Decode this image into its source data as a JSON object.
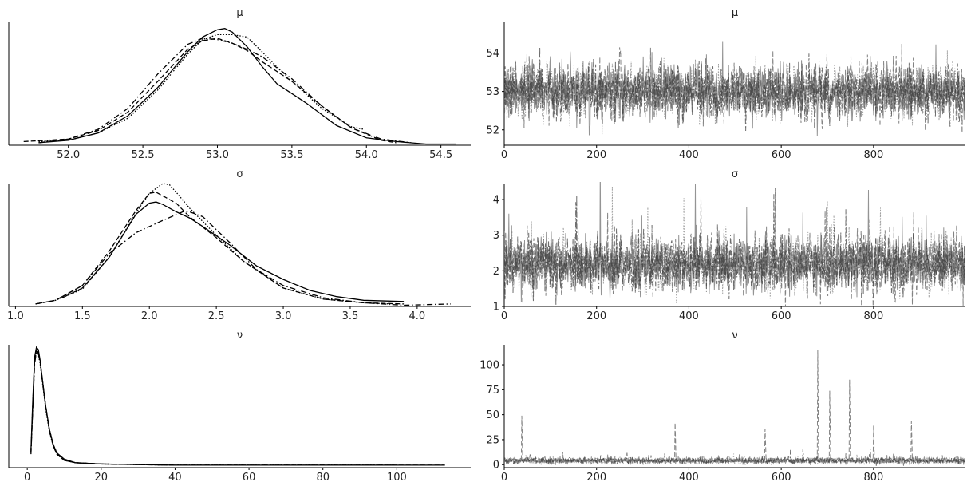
{
  "chart_data": [
    {
      "type": "line",
      "role": "density",
      "title": "μ",
      "xlabel": "",
      "ylabel": "",
      "xlim": [
        51.6,
        54.7
      ],
      "ylim": [
        0,
        1.0
      ],
      "xticks": [
        "52.0",
        "52.5",
        "53.0",
        "53.5",
        "54.0",
        "54.5"
      ],
      "show_yticks": false,
      "grid": false,
      "series": [
        {
          "style": "solid",
          "x": [
            51.8,
            52.0,
            52.2,
            52.4,
            52.6,
            52.8,
            52.9,
            53.0,
            53.05,
            53.1,
            53.2,
            53.3,
            53.4,
            53.5,
            53.6,
            53.8,
            54.0,
            54.2,
            54.4,
            54.6
          ],
          "y": [
            0.02,
            0.04,
            0.1,
            0.24,
            0.47,
            0.76,
            0.88,
            0.94,
            0.95,
            0.92,
            0.8,
            0.64,
            0.5,
            0.42,
            0.34,
            0.16,
            0.06,
            0.03,
            0.01,
            0.01
          ]
        },
        {
          "style": "dashed",
          "x": [
            51.7,
            52.0,
            52.2,
            52.4,
            52.6,
            52.8,
            52.9,
            53.0,
            53.1,
            53.2,
            53.3,
            53.5,
            53.7,
            53.9,
            54.1,
            54.2
          ],
          "y": [
            0.03,
            0.05,
            0.12,
            0.27,
            0.52,
            0.78,
            0.85,
            0.87,
            0.83,
            0.77,
            0.68,
            0.52,
            0.32,
            0.14,
            0.04,
            0.02
          ]
        },
        {
          "style": "dotted",
          "x": [
            51.8,
            52.0,
            52.2,
            52.4,
            52.6,
            52.8,
            52.9,
            53.0,
            53.1,
            53.2,
            53.3,
            53.5,
            53.7,
            53.9,
            53.98
          ],
          "y": [
            0.03,
            0.04,
            0.1,
            0.22,
            0.45,
            0.74,
            0.86,
            0.9,
            0.9,
            0.88,
            0.76,
            0.52,
            0.3,
            0.15,
            0.13
          ]
        },
        {
          "style": "dashdot",
          "x": [
            51.8,
            52.0,
            52.2,
            52.4,
            52.6,
            52.8,
            52.9,
            53.0,
            53.1,
            53.2,
            53.3,
            53.5,
            53.7,
            53.9,
            54.1,
            54.3
          ],
          "y": [
            0.02,
            0.05,
            0.13,
            0.3,
            0.58,
            0.82,
            0.87,
            0.86,
            0.83,
            0.78,
            0.72,
            0.54,
            0.32,
            0.14,
            0.05,
            0.02
          ]
        }
      ]
    },
    {
      "type": "line",
      "role": "trace",
      "title": "μ",
      "xlabel": "",
      "ylabel": "",
      "xlim": [
        0,
        999
      ],
      "ylim": [
        51.6,
        54.8
      ],
      "xticks": [
        "0",
        "200",
        "400",
        "600",
        "800"
      ],
      "yticks": [
        "52",
        "53",
        "54"
      ],
      "grid": false,
      "n_draws": 1000,
      "center": 53.0,
      "spread": 0.35,
      "spike": 0.0,
      "series": [
        {
          "style": "solid"
        },
        {
          "style": "dashed"
        },
        {
          "style": "dotted"
        },
        {
          "style": "dashdot"
        }
      ]
    },
    {
      "type": "line",
      "role": "density",
      "title": "σ",
      "xlabel": "",
      "ylabel": "",
      "xlim": [
        0.95,
        4.4
      ],
      "ylim": [
        0,
        1.0
      ],
      "xticks": [
        "1.0",
        "1.5",
        "2.0",
        "2.5",
        "3.0",
        "3.5",
        "4.0"
      ],
      "show_yticks": false,
      "grid": false,
      "series": [
        {
          "style": "solid",
          "x": [
            1.35,
            1.5,
            1.7,
            1.9,
            2.0,
            2.05,
            2.1,
            2.2,
            2.3,
            2.4,
            2.6,
            2.8,
            3.0,
            3.2,
            3.4,
            3.6,
            3.9
          ],
          "y": [
            0.07,
            0.15,
            0.4,
            0.75,
            0.84,
            0.85,
            0.83,
            0.77,
            0.72,
            0.65,
            0.5,
            0.33,
            0.22,
            0.13,
            0.08,
            0.05,
            0.04
          ]
        },
        {
          "style": "dashed",
          "x": [
            1.15,
            1.3,
            1.5,
            1.7,
            1.9,
            2.0,
            2.05,
            2.1,
            2.2,
            2.3,
            2.5,
            2.7,
            3.0,
            3.3,
            3.6,
            3.9
          ],
          "y": [
            0.02,
            0.05,
            0.17,
            0.45,
            0.78,
            0.92,
            0.93,
            0.9,
            0.84,
            0.73,
            0.56,
            0.37,
            0.15,
            0.06,
            0.03,
            0.02
          ]
        },
        {
          "style": "dotted",
          "x": [
            1.15,
            1.3,
            1.5,
            1.7,
            1.9,
            2.0,
            2.1,
            2.15,
            2.2,
            2.3,
            2.5,
            2.7,
            3.0,
            3.3,
            3.6,
            3.8
          ],
          "y": [
            0.02,
            0.05,
            0.14,
            0.4,
            0.76,
            0.92,
            1.0,
            0.99,
            0.93,
            0.8,
            0.58,
            0.37,
            0.15,
            0.06,
            0.03,
            0.02
          ]
        },
        {
          "style": "dashdot",
          "x": [
            1.15,
            1.3,
            1.5,
            1.7,
            1.9,
            2.1,
            2.25,
            2.3,
            2.4,
            2.6,
            2.8,
            3.0,
            3.3,
            3.6,
            3.9,
            4.25
          ],
          "y": [
            0.02,
            0.05,
            0.17,
            0.43,
            0.6,
            0.7,
            0.77,
            0.77,
            0.73,
            0.52,
            0.3,
            0.17,
            0.07,
            0.03,
            0.01,
            0.02
          ]
        }
      ]
    },
    {
      "type": "line",
      "role": "trace",
      "title": "σ",
      "xlabel": "",
      "ylabel": "",
      "xlim": [
        0,
        999
      ],
      "ylim": [
        1.0,
        4.45
      ],
      "xticks": [
        "0",
        "200",
        "400",
        "600",
        "800"
      ],
      "yticks": [
        "1",
        "2",
        "3",
        "4"
      ],
      "grid": false,
      "n_draws": 1000,
      "center": 2.2,
      "spread": 0.38,
      "spike": 0.03,
      "series": [
        {
          "style": "solid"
        },
        {
          "style": "dashed"
        },
        {
          "style": "dotted"
        },
        {
          "style": "dashdot"
        }
      ]
    },
    {
      "type": "line",
      "role": "density",
      "title": "ν",
      "xlabel": "",
      "ylabel": "",
      "xlim": [
        -5,
        120
      ],
      "ylim": [
        0,
        1.0
      ],
      "xticks": [
        "0",
        "20",
        "40",
        "60",
        "80",
        "100"
      ],
      "show_yticks": false,
      "grid": false,
      "series": [
        {
          "style": "solid",
          "x": [
            1,
            1.5,
            2,
            2.5,
            3,
            3.5,
            4,
            5,
            6,
            7,
            8,
            10,
            13,
            20,
            40,
            60,
            80,
            100,
            113
          ],
          "y": [
            0.14,
            0.55,
            0.9,
            0.98,
            0.96,
            0.87,
            0.74,
            0.5,
            0.31,
            0.19,
            0.12,
            0.07,
            0.04,
            0.03,
            0.02,
            0.02,
            0.02,
            0.02,
            0.02
          ]
        },
        {
          "style": "dashed",
          "x": [
            1,
            1.5,
            2,
            2.5,
            3,
            3.5,
            4,
            5,
            6,
            7,
            8,
            10,
            13,
            20,
            40,
            60,
            80,
            100,
            113
          ],
          "y": [
            0.12,
            0.5,
            0.86,
            0.95,
            0.94,
            0.86,
            0.73,
            0.49,
            0.3,
            0.18,
            0.11,
            0.06,
            0.04,
            0.03,
            0.02,
            0.02,
            0.02,
            0.02,
            0.02
          ]
        },
        {
          "style": "dotted",
          "x": [
            1,
            1.5,
            2,
            2.5,
            3,
            3.5,
            4,
            5,
            6,
            7,
            8,
            10,
            13,
            20,
            40,
            60,
            80,
            100
          ],
          "y": [
            0.13,
            0.52,
            0.88,
            0.96,
            0.92,
            0.84,
            0.72,
            0.48,
            0.29,
            0.18,
            0.11,
            0.06,
            0.04,
            0.03,
            0.02,
            0.02,
            0.02,
            0.02
          ]
        },
        {
          "style": "dashdot",
          "x": [
            1,
            1.5,
            2,
            2.5,
            3,
            3.5,
            4,
            5,
            6,
            7,
            8,
            10,
            13,
            20,
            40,
            60,
            80,
            100
          ],
          "y": [
            0.11,
            0.48,
            0.84,
            0.95,
            0.93,
            0.86,
            0.74,
            0.5,
            0.31,
            0.19,
            0.12,
            0.06,
            0.04,
            0.03,
            0.02,
            0.02,
            0.02,
            0.02
          ]
        }
      ]
    },
    {
      "type": "line",
      "role": "trace",
      "title": "ν",
      "xlabel": "",
      "ylabel": "",
      "xlim": [
        0,
        999
      ],
      "ylim": [
        -3,
        120
      ],
      "xticks": [
        "0",
        "200",
        "400",
        "600",
        "800"
      ],
      "yticks": [
        "0",
        "25",
        "50",
        "75",
        "100"
      ],
      "grid": false,
      "n_draws": 1000,
      "center": 4.0,
      "spread": 1.5,
      "spike": 0.03,
      "highlights": [
        {
          "x": 679,
          "y": 115
        },
        {
          "x": 705,
          "y": 74
        },
        {
          "x": 748,
          "y": 85
        },
        {
          "x": 38,
          "y": 49
        },
        {
          "x": 882,
          "y": 44
        },
        {
          "x": 370,
          "y": 42
        },
        {
          "x": 800,
          "y": 39
        },
        {
          "x": 565,
          "y": 36
        }
      ],
      "series": [
        {
          "style": "solid"
        },
        {
          "style": "dashed"
        },
        {
          "style": "dotted"
        },
        {
          "style": "dashdot"
        }
      ]
    }
  ]
}
